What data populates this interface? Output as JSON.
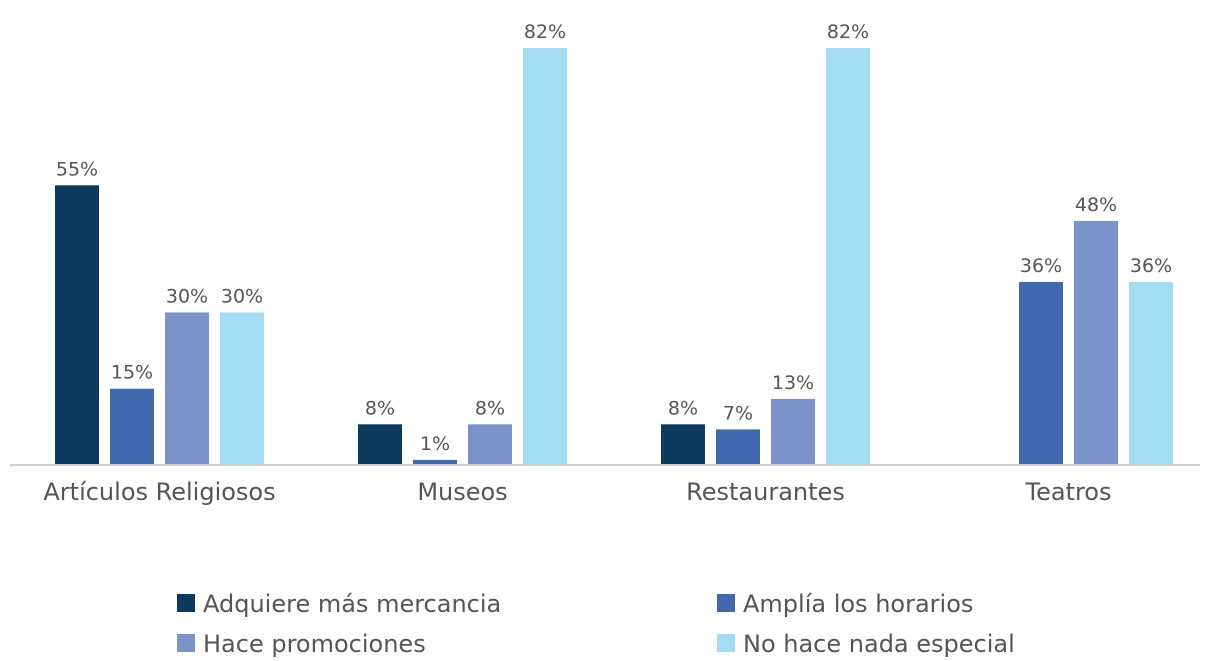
{
  "chart_data": {
    "type": "bar",
    "categories": [
      "Artículos Religiosos",
      "Museos",
      "Restaurantes",
      "Teatros"
    ],
    "series": [
      {
        "name": "Adquiere más mercancia",
        "color": "#0b3a5e",
        "values": [
          55,
          8,
          8,
          null
        ],
        "value_labels": [
          "55%",
          "8%",
          "8%",
          null
        ]
      },
      {
        "name": "Amplía los horarios",
        "color": "#4169b0",
        "values": [
          15,
          1,
          7,
          36
        ],
        "value_labels": [
          "15%",
          "1%",
          "7%",
          "36%"
        ]
      },
      {
        "name": "Hace promociones",
        "color": "#7b93c9",
        "values": [
          30,
          8,
          13,
          48
        ],
        "value_labels": [
          "30%",
          "8%",
          "13%",
          "48%"
        ]
      },
      {
        "name": "No hace nada especial",
        "color": "#a3dcf5",
        "values": [
          30,
          82,
          82,
          36
        ],
        "value_labels": [
          "30%",
          "82%",
          "82%",
          "36%"
        ]
      }
    ]
  }
}
